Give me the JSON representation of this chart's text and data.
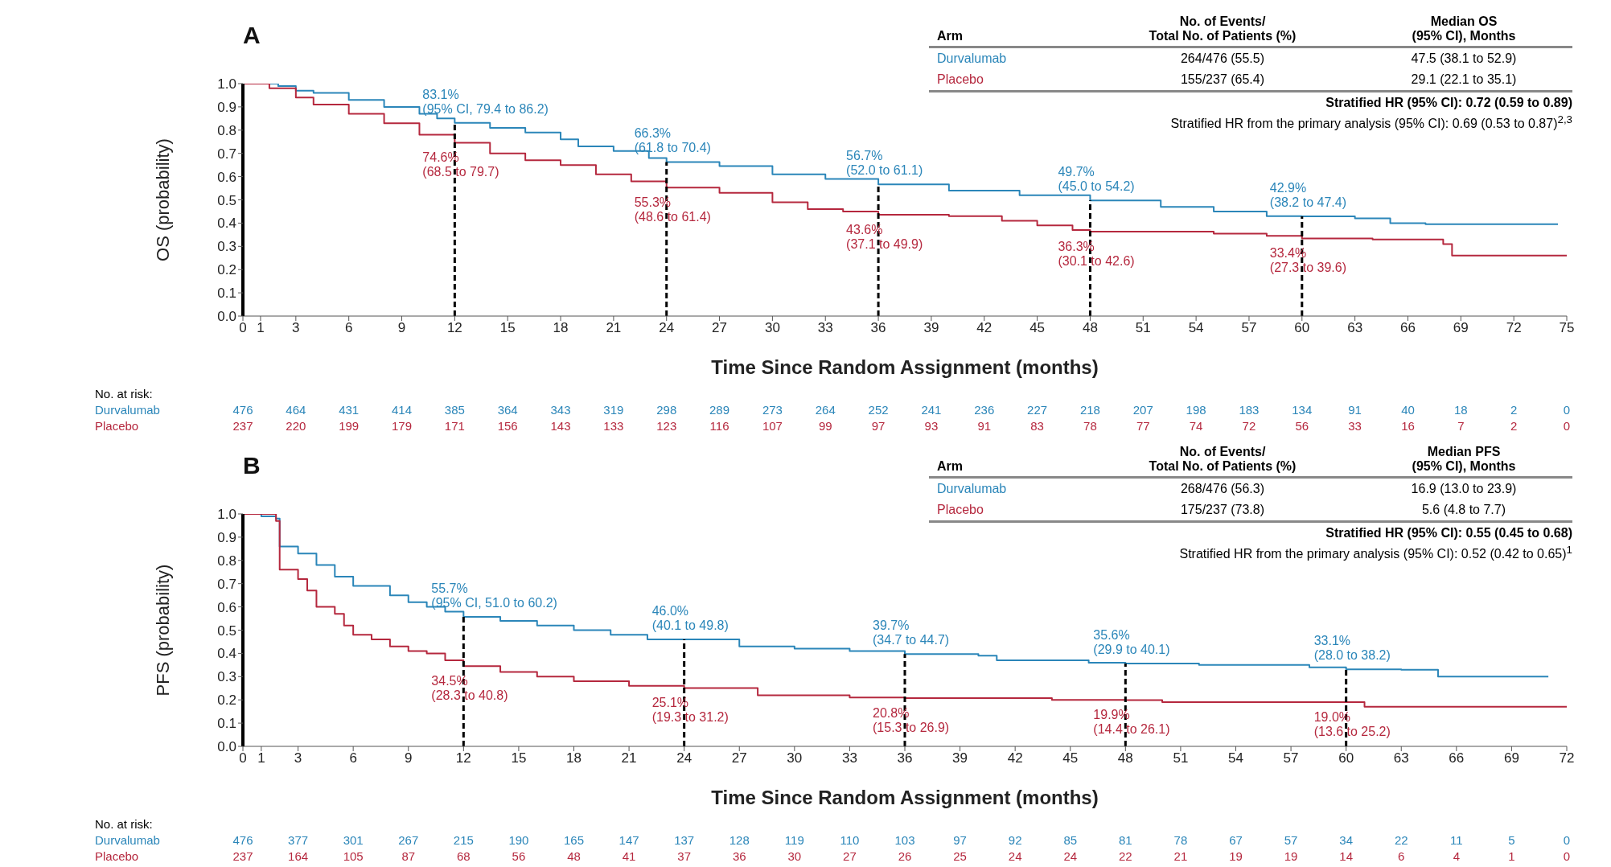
{
  "chart_data": [
    {
      "type": "step",
      "title": "A",
      "xlabel": "Time Since Random Assignment (months)",
      "ylabel": "OS (probability)",
      "xlim": [
        0,
        75
      ],
      "xticks": [
        0,
        1,
        3,
        6,
        9,
        12,
        15,
        18,
        21,
        24,
        27,
        30,
        33,
        36,
        39,
        42,
        45,
        48,
        51,
        54,
        57,
        60,
        63,
        66,
        69,
        72,
        75
      ],
      "ylim": [
        0,
        1
      ],
      "yticks": [
        {
          "value": 0,
          "label": "0.0"
        },
        {
          "value": 0.1,
          "label": "0.1"
        },
        {
          "value": 0.2,
          "label": "0.2"
        },
        {
          "value": 0.3,
          "label": "0.3"
        },
        {
          "value": 0.4,
          "label": "0.4"
        },
        {
          "value": 0.5,
          "label": "0.5"
        },
        {
          "value": 0.6,
          "label": "0.6"
        },
        {
          "value": 0.7,
          "label": "0.7"
        },
        {
          "value": 0.8,
          "label": "0.8"
        },
        {
          "value": 0.9,
          "label": "0.9"
        },
        {
          "value": 1,
          "label": "1.0"
        }
      ],
      "series": [
        {
          "name": "Durvalumab",
          "color": "#2b86b9",
          "x": [
            0,
            2,
            3,
            4,
            6,
            8,
            10,
            11,
            12,
            14,
            16,
            18,
            19,
            21,
            23,
            24,
            27,
            30,
            33,
            36,
            40,
            44,
            48,
            52,
            55,
            58,
            60,
            63,
            65,
            67,
            74.5
          ],
          "values": [
            1.0,
            0.99,
            0.97,
            0.96,
            0.93,
            0.9,
            0.87,
            0.85,
            0.831,
            0.81,
            0.79,
            0.76,
            0.73,
            0.71,
            0.68,
            0.663,
            0.645,
            0.61,
            0.59,
            0.567,
            0.54,
            0.52,
            0.497,
            0.47,
            0.45,
            0.43,
            0.429,
            0.42,
            0.4,
            0.395,
            0.395
          ]
        },
        {
          "name": "Placebo",
          "color": "#b5283e",
          "x": [
            0,
            1.5,
            3,
            4,
            6,
            8,
            10,
            12,
            14,
            16,
            18,
            20,
            22,
            24,
            27,
            30,
            32,
            34,
            36,
            40,
            43,
            45,
            47,
            48,
            55,
            58,
            60,
            64,
            68,
            68.5,
            75
          ],
          "values": [
            1.0,
            0.98,
            0.94,
            0.91,
            0.87,
            0.83,
            0.78,
            0.746,
            0.7,
            0.67,
            0.65,
            0.61,
            0.58,
            0.553,
            0.53,
            0.49,
            0.46,
            0.45,
            0.436,
            0.43,
            0.41,
            0.39,
            0.37,
            0.363,
            0.355,
            0.345,
            0.334,
            0.33,
            0.31,
            0.26,
            0.26
          ]
        }
      ],
      "ref_lines": [
        {
          "axis": "x",
          "value": 12,
          "color": "#000000",
          "line_style": "dashed"
        },
        {
          "axis": "x",
          "value": 24,
          "color": "#000000",
          "line_style": "dashed"
        },
        {
          "axis": "x",
          "value": 36,
          "color": "#000000",
          "line_style": "dashed"
        },
        {
          "axis": "x",
          "value": 48,
          "color": "#000000",
          "line_style": "dashed"
        },
        {
          "axis": "x",
          "value": 60,
          "color": "#000000",
          "line_style": "dashed"
        }
      ],
      "annotations": [
        {
          "text": "83.1%\n(95% CI, 79.4 to 86.2)",
          "x": 12,
          "y": 0.831
        },
        {
          "text": "74.6%\n(68.5 to 79.7)",
          "x": 12,
          "y": 0.746
        },
        {
          "text": "66.3%\n(61.8 to 70.4)",
          "x": 24,
          "y": 0.663
        },
        {
          "text": "55.3%\n(48.6 to 61.4)",
          "x": 24,
          "y": 0.553
        },
        {
          "text": "56.7%\n(52.0 to 61.1)",
          "x": 36,
          "y": 0.567
        },
        {
          "text": "43.6%\n(37.1 to 49.9)",
          "x": 36,
          "y": 0.436
        },
        {
          "text": "49.7%\n(45.0 to 54.2)",
          "x": 48,
          "y": 0.497
        },
        {
          "text": "36.3%\n(30.1 to 42.6)",
          "x": 48,
          "y": 0.363
        },
        {
          "text": "42.9%\n(38.2 to 47.4)",
          "x": 60,
          "y": 0.429
        },
        {
          "text": "33.4%\n(27.3 to 39.6)",
          "x": 60,
          "y": 0.334
        },
        "Arm",
        "No. of Events/\nTotal No. of Patients (%)",
        "Median OS\n(95% CI), Months",
        "264/476 (55.5)",
        "47.5 (38.1 to 52.9)",
        "155/237 (65.4)",
        "29.1 (22.1 to 35.1)",
        "Stratified HR (95% CI): 0.72 (0.59 to 0.89)",
        "Stratified HR from the primary analysis (95% CI): 0.69 (0.53 to 0.87)$^{2,3}$",
        "No. at risk:",
        "476 464 431 414 385 364 343 319 298 289 273 264 252 241 236 227 218 207 198 183 134 91 40 18 2 0",
        "237 220 199 179 171 156 143 133 123 116 107 99 97 93 91 83 78 77 74 72 56 33 16 7 2 0"
      ]
    },
    {
      "type": "step",
      "title": "B",
      "xlabel": "Time Since Random Assignment (months)",
      "ylabel": "PFS (probability)",
      "xlim": [
        0,
        72
      ],
      "xticks": [
        0,
        1,
        3,
        6,
        9,
        12,
        15,
        18,
        21,
        24,
        27,
        30,
        33,
        36,
        39,
        42,
        45,
        48,
        51,
        54,
        57,
        60,
        63,
        66,
        69,
        72
      ],
      "ylim": [
        0,
        1
      ],
      "yticks": [
        {
          "value": 0,
          "label": "0.0"
        },
        {
          "value": 0.1,
          "label": "0.1"
        },
        {
          "value": 0.2,
          "label": "0.2"
        },
        {
          "value": 0.3,
          "label": "0.3"
        },
        {
          "value": 0.4,
          "label": "0.4"
        },
        {
          "value": 0.5,
          "label": "0.5"
        },
        {
          "value": 0.6,
          "label": "0.6"
        },
        {
          "value": 0.7,
          "label": "0.7"
        },
        {
          "value": 0.8,
          "label": "0.8"
        },
        {
          "value": 0.9,
          "label": "0.9"
        },
        {
          "value": 1,
          "label": "1.0"
        }
      ],
      "series": [
        {
          "name": "Durvalumab",
          "color": "#2b86b9",
          "x": [
            0,
            1,
            1.8,
            2,
            3,
            4,
            5,
            6,
            8,
            9,
            10,
            11,
            12,
            14,
            16,
            18,
            20,
            22,
            24,
            27,
            30,
            33,
            36,
            40,
            41,
            46,
            48,
            52,
            58,
            60,
            63,
            65,
            71
          ],
          "values": [
            1.0,
            0.99,
            0.98,
            0.86,
            0.83,
            0.78,
            0.73,
            0.69,
            0.65,
            0.62,
            0.6,
            0.58,
            0.557,
            0.54,
            0.52,
            0.5,
            0.48,
            0.46,
            0.46,
            0.43,
            0.42,
            0.41,
            0.397,
            0.39,
            0.37,
            0.36,
            0.356,
            0.35,
            0.34,
            0.331,
            0.33,
            0.3,
            0.3
          ]
        },
        {
          "name": "Placebo",
          "color": "#b5283e",
          "x": [
            0,
            1.8,
            2,
            3,
            3.5,
            4,
            5,
            5.5,
            6,
            7,
            8,
            9,
            10,
            11,
            12,
            14,
            16,
            18,
            21,
            24,
            28,
            33,
            36,
            44,
            48,
            50,
            60,
            61,
            72
          ],
          "values": [
            1.0,
            0.97,
            0.76,
            0.72,
            0.67,
            0.6,
            0.57,
            0.52,
            0.48,
            0.46,
            0.43,
            0.41,
            0.4,
            0.37,
            0.345,
            0.32,
            0.3,
            0.28,
            0.26,
            0.251,
            0.22,
            0.21,
            0.208,
            0.2,
            0.199,
            0.19,
            0.19,
            0.17,
            0.17
          ]
        }
      ],
      "ref_lines": [
        {
          "axis": "x",
          "value": 12,
          "color": "#000000",
          "line_style": "dashed"
        },
        {
          "axis": "x",
          "value": 24,
          "color": "#000000",
          "line_style": "dashed"
        },
        {
          "axis": "x",
          "value": 36,
          "color": "#000000",
          "line_style": "dashed"
        },
        {
          "axis": "x",
          "value": 48,
          "color": "#000000",
          "line_style": "dashed"
        },
        {
          "axis": "x",
          "value": 60,
          "color": "#000000",
          "line_style": "dashed"
        }
      ],
      "annotations": [
        {
          "text": "55.7%\n(95% CI, 51.0 to 60.2)",
          "x": 12,
          "y": 0.557
        },
        {
          "text": "34.5%\n(28.3 to 40.8)",
          "x": 12,
          "y": 0.345
        },
        {
          "text": "46.0%\n(40.1 to 49.8)",
          "x": 24,
          "y": 0.46
        },
        {
          "text": "25.1%\n(19.3 to 31.2)",
          "x": 24,
          "y": 0.251
        },
        {
          "text": "39.7%\n(34.7 to 44.7)",
          "x": 36,
          "y": 0.397
        },
        {
          "text": "20.8%\n(15.3 to 26.9)",
          "x": 36,
          "y": 0.208
        },
        {
          "text": "35.6%\n(29.9 to 40.1)",
          "x": 48,
          "y": 0.356
        },
        {
          "text": "19.9%\n(14.4 to 26.1)",
          "x": 48,
          "y": 0.199
        },
        {
          "text": "33.1%\n(28.0 to 38.2)",
          "x": 60,
          "y": 0.331
        },
        {
          "text": "19.0%\n(13.6 to 25.2)",
          "x": 60,
          "y": 0.19
        },
        "Arm",
        "No. of Events/\nTotal No. of Patients (%)",
        "Median PFS\n(95% CI), Months",
        "268/476 (56.3)",
        "16.9 (13.0 to 23.9)",
        "175/237 (73.8)",
        "5.6 (4.8 to 7.7)",
        "Stratified HR (95% CI): 0.55 (0.45 to 0.68)",
        "Stratified HR from the primary analysis (95% CI): 0.52 (0.42 to 0.65)$^{1}$",
        "No. at risk:",
        "476 377 301 267 215 190 165 147 137 128 119 110 103 97 92 85 81 78 67 57 34 22 11 5 0",
        "237 164 105 87 68 56 48 41 37 36 30 27 26 25 24 24 22 21 19 19 14 6 4 1 0"
      ]
    }
  ]
}
